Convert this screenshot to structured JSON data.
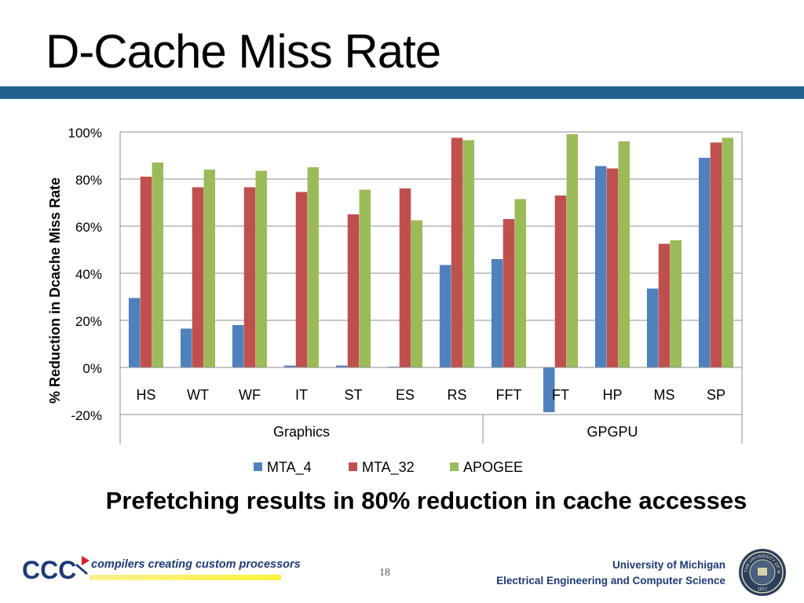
{
  "slide": {
    "title": "D-Cache Miss Rate",
    "subtitle": "Prefetching results in 80% reduction in cache accesses",
    "page_number": "18"
  },
  "footer": {
    "logo_mark": "CCC",
    "logo_tagline": "compilers creating custom processors",
    "university": "University of Michigan",
    "department": "Electrical Engineering and Computer Science",
    "seal_text": "THE UNIVERSITY OF MICHIGAN",
    "seal_year": "1817"
  },
  "chart_data": {
    "type": "bar",
    "ylabel": "% Reduction in Dcache Miss Rate",
    "ylim": [
      -20,
      100
    ],
    "yticks": [
      100,
      80,
      60,
      40,
      20,
      0,
      -20
    ],
    "ytick_labels": [
      "100%",
      "80%",
      "60%",
      "40%",
      "20%",
      "0%",
      "-20%"
    ],
    "grid": true,
    "legend_position": "bottom",
    "categories": [
      "HS",
      "WT",
      "WF",
      "IT",
      "ST",
      "ES",
      "RS",
      "FFT",
      "FT",
      "HP",
      "MS",
      "SP"
    ],
    "groups": [
      {
        "label": "Graphics",
        "start": 0,
        "end": 6
      },
      {
        "label": "GPGPU",
        "start": 7,
        "end": 11
      }
    ],
    "series": [
      {
        "name": "MTA_4",
        "color": "#4f81bd",
        "values": [
          29.5,
          16.5,
          18,
          0.8,
          0.8,
          0.3,
          43.5,
          46,
          -19,
          85.5,
          33.5,
          89
        ]
      },
      {
        "name": "MTA_32",
        "color": "#c0504d",
        "values": [
          81,
          76.5,
          76.5,
          74.5,
          65,
          76,
          97.5,
          63,
          73,
          84.5,
          52.5,
          95.5
        ]
      },
      {
        "name": "APOGEE",
        "color": "#9bbb59",
        "values": [
          87,
          84,
          83.5,
          85,
          75.5,
          62.5,
          96.5,
          71.5,
          99,
          96,
          54,
          97.5
        ]
      }
    ]
  }
}
